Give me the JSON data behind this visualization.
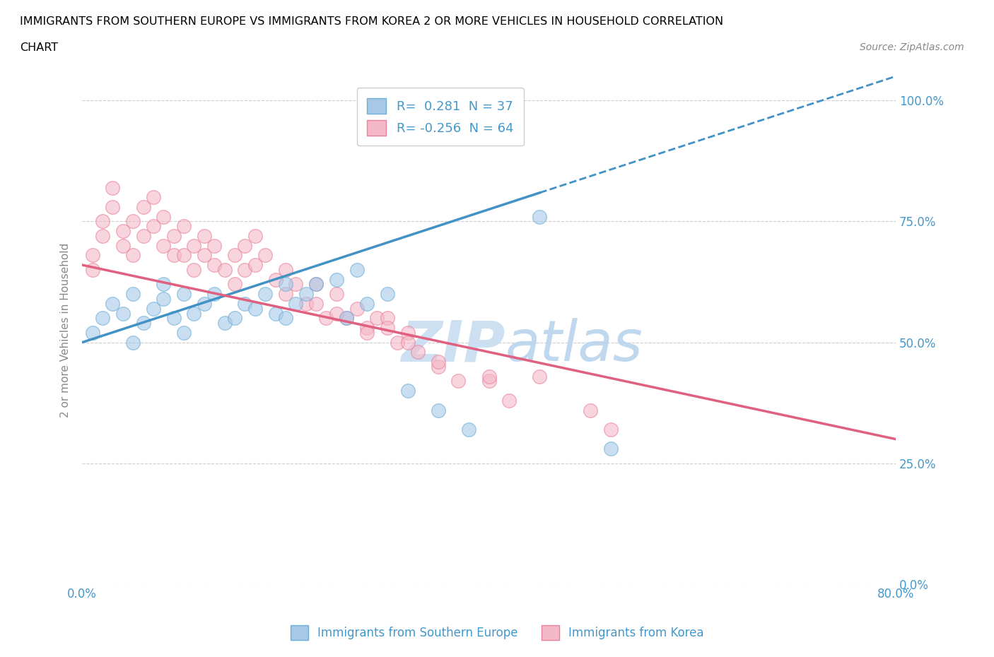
{
  "title_line1": "IMMIGRANTS FROM SOUTHERN EUROPE VS IMMIGRANTS FROM KOREA 2 OR MORE VEHICLES IN HOUSEHOLD CORRELATION",
  "title_line2": "CHART",
  "source_text": "Source: ZipAtlas.com",
  "ylabel": "2 or more Vehicles in Household",
  "xlim": [
    0.0,
    0.8
  ],
  "ylim": [
    0.0,
    1.05
  ],
  "ytick_vals": [
    0.0,
    0.25,
    0.5,
    0.75,
    1.0
  ],
  "ytick_labels": [
    "0.0%",
    "25.0%",
    "50.0%",
    "75.0%",
    "100.0%"
  ],
  "xtick_vals": [
    0.0,
    0.1,
    0.2,
    0.3,
    0.4,
    0.5,
    0.6,
    0.7,
    0.8
  ],
  "xtick_show": [
    "0.0%",
    "",
    "",
    "",
    "",
    "",
    "",
    "",
    "80.0%"
  ],
  "legend_entry1": "R=  0.281  N = 37",
  "legend_entry2": "R= -0.256  N = 64",
  "color_blue": "#a8c8e8",
  "color_blue_edge": "#6baed6",
  "color_pink": "#f4b8c8",
  "color_pink_edge": "#e88099",
  "color_blue_line": "#4292c6",
  "color_pink_line": "#e06080",
  "color_text_blue": "#4499cc",
  "watermark_color": "#c8ddf0",
  "blue_line_x0": 0.0,
  "blue_line_y0": 0.5,
  "blue_line_x1": 0.8,
  "blue_line_y1": 1.05,
  "blue_line_solid_x1": 0.45,
  "pink_line_x0": 0.0,
  "pink_line_y0": 0.66,
  "pink_line_x1": 0.8,
  "pink_line_y1": 0.3,
  "blue_scatter_x": [
    0.01,
    0.02,
    0.03,
    0.04,
    0.05,
    0.05,
    0.06,
    0.07,
    0.08,
    0.08,
    0.09,
    0.1,
    0.1,
    0.11,
    0.12,
    0.13,
    0.14,
    0.15,
    0.16,
    0.17,
    0.18,
    0.19,
    0.2,
    0.2,
    0.21,
    0.22,
    0.23,
    0.25,
    0.26,
    0.27,
    0.28,
    0.3,
    0.32,
    0.35,
    0.38,
    0.45,
    0.52
  ],
  "blue_scatter_y": [
    0.52,
    0.55,
    0.58,
    0.56,
    0.5,
    0.6,
    0.54,
    0.57,
    0.59,
    0.62,
    0.55,
    0.6,
    0.52,
    0.56,
    0.58,
    0.6,
    0.54,
    0.55,
    0.58,
    0.57,
    0.6,
    0.56,
    0.62,
    0.55,
    0.58,
    0.6,
    0.62,
    0.63,
    0.55,
    0.65,
    0.58,
    0.6,
    0.4,
    0.36,
    0.32,
    0.76,
    0.28
  ],
  "pink_scatter_x": [
    0.01,
    0.01,
    0.02,
    0.02,
    0.03,
    0.03,
    0.04,
    0.04,
    0.05,
    0.05,
    0.06,
    0.06,
    0.07,
    0.07,
    0.08,
    0.08,
    0.09,
    0.09,
    0.1,
    0.1,
    0.11,
    0.11,
    0.12,
    0.12,
    0.13,
    0.13,
    0.14,
    0.15,
    0.15,
    0.16,
    0.16,
    0.17,
    0.17,
    0.18,
    0.19,
    0.2,
    0.2,
    0.21,
    0.22,
    0.23,
    0.24,
    0.25,
    0.26,
    0.27,
    0.28,
    0.29,
    0.3,
    0.31,
    0.32,
    0.33,
    0.35,
    0.37,
    0.4,
    0.42,
    0.45,
    0.5,
    0.52,
    0.23,
    0.25,
    0.28,
    0.3,
    0.32,
    0.35,
    0.4
  ],
  "pink_scatter_y": [
    0.65,
    0.68,
    0.72,
    0.75,
    0.78,
    0.82,
    0.7,
    0.73,
    0.68,
    0.75,
    0.72,
    0.78,
    0.74,
    0.8,
    0.7,
    0.76,
    0.72,
    0.68,
    0.74,
    0.68,
    0.7,
    0.65,
    0.68,
    0.72,
    0.66,
    0.7,
    0.65,
    0.68,
    0.62,
    0.65,
    0.7,
    0.66,
    0.72,
    0.68,
    0.63,
    0.65,
    0.6,
    0.62,
    0.58,
    0.62,
    0.55,
    0.6,
    0.55,
    0.57,
    0.53,
    0.55,
    0.55,
    0.5,
    0.52,
    0.48,
    0.45,
    0.42,
    0.42,
    0.38,
    0.43,
    0.36,
    0.32,
    0.58,
    0.56,
    0.52,
    0.53,
    0.5,
    0.46,
    0.43
  ]
}
